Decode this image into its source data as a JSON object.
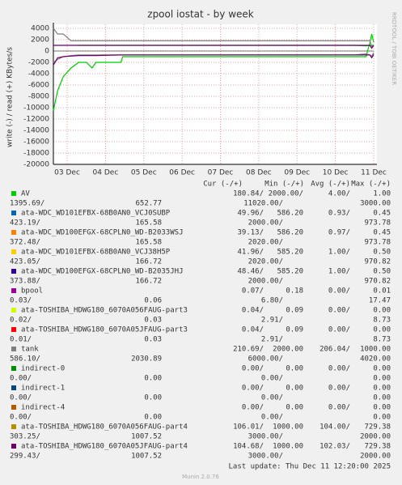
{
  "chart_data": {
    "type": "line",
    "title": "zpool iostat - by week",
    "ylabel": "write (-) / read (+) KBytes/s",
    "watermark": "RRDTOOL / TOBI OETIKER",
    "x": [
      2.64,
      2.75,
      2.9,
      3.1,
      3.3,
      3.5,
      3.65,
      3.75,
      4.4,
      4.45,
      10.5,
      10.8,
      10.9,
      10.95,
      11.0
    ],
    "xlim": [
      2.64,
      11.0
    ],
    "xticks": [
      {
        "value": 3,
        "label": "03 Dec"
      },
      {
        "value": 4,
        "label": "04 Dec"
      },
      {
        "value": 5,
        "label": "05 Dec"
      },
      {
        "value": 6,
        "label": "06 Dec"
      },
      {
        "value": 7,
        "label": "07 Dec"
      },
      {
        "value": 8,
        "label": "08 Dec"
      },
      {
        "value": 9,
        "label": "09 Dec"
      },
      {
        "value": 10,
        "label": "10 Dec"
      },
      {
        "value": 11,
        "label": "11 Dec"
      }
    ],
    "ylim": [
      -20000,
      4000
    ],
    "yticks": [
      4000,
      2000,
      0,
      -2000,
      -4000,
      -6000,
      -8000,
      -10000,
      -12000,
      -14000,
      -16000,
      -18000,
      -20000
    ],
    "grid": true,
    "legend_header": [
      "Cur (-/+)",
      "Min (-/+)",
      "Avg (-/+)",
      "Max (-/+)"
    ],
    "series": [
      {
        "name": "AV",
        "color": "#00cc00",
        "values": [
          null,
          null,
          null,
          null,
          1000,
          1000,
          1000,
          1000,
          1000,
          1000,
          1000,
          900,
          1000,
          1000,
          1000
        ],
        "write_values": [
          -10500,
          -7000,
          -4500,
          -3000,
          -2000,
          -2000,
          -3000,
          -2000,
          -2000,
          -1000,
          -1000,
          -1000,
          1500,
          3000,
          1500
        ],
        "stats": [
          [
            "180.84/",
            "2000.00/",
            "4.00/",
            "1.00"
          ],
          [
            "1395.69/",
            "652.77",
            "11020.00/",
            "3000.00"
          ]
        ]
      },
      {
        "name": "ata-WDC_WD101EFBX-68B0AN0_VCJ0SUBP",
        "color": "#0066b3",
        "stats": [
          [
            "49.96/",
            "586.20",
            "0.93/",
            "0.45"
          ],
          [
            "423.19/",
            "165.58",
            "2000.00/",
            "973.78"
          ]
        ]
      },
      {
        "name": "ata-WDC_WD100EFGX-68CPLN0_WD-B2033WSJ",
        "color": "#ff8000",
        "stats": [
          [
            "39.13/",
            "586.20",
            "0.97/",
            "0.45"
          ],
          [
            "372.48/",
            "165.58",
            "2020.00/",
            "973.78"
          ]
        ]
      },
      {
        "name": "ata-WDC_WD101EFBX-68B0AN0_VCJ38H5P",
        "color": "#ffcc00",
        "stats": [
          [
            "41.96/",
            "585.20",
            "1.00/",
            "0.50"
          ],
          [
            "423.05/",
            "166.72",
            "2020.00/",
            "970.82"
          ]
        ]
      },
      {
        "name": "ata-WDC_WD100EFGX-68CPLN0_WD-B2035JHJ",
        "color": "#330099",
        "stats": [
          [
            "48.46/",
            "585.20",
            "1.00/",
            "0.50"
          ],
          [
            "373.88/",
            "166.72",
            "2000.00/",
            "970.82"
          ]
        ]
      },
      {
        "name": "bpool",
        "color": "#990099",
        "stats": [
          [
            "0.07/",
            "0.18",
            "0.00/",
            "0.01"
          ],
          [
            "0.03/",
            "0.06",
            "6.80/",
            "17.47"
          ]
        ]
      },
      {
        "name": "ata-TOSHIBA_HDWG180_6070A056FAUG-part3",
        "color": "#ccff00",
        "stats": [
          [
            "0.04/",
            "0.09",
            "0.00/",
            "0.00"
          ],
          [
            "0.02/",
            "0.03",
            "2.91/",
            "8.73"
          ]
        ]
      },
      {
        "name": "ata-TOSHIBA_HDWG180_6070A05JFAUG-part3",
        "color": "#ff0000",
        "stats": [
          [
            "0.04/",
            "0.09",
            "0.00/",
            "0.00"
          ],
          [
            "0.01/",
            "0.03",
            "2.91/",
            "8.73"
          ]
        ]
      },
      {
        "name": "tank",
        "color": "#808080",
        "values": [
          4000,
          3000,
          3000,
          1800,
          1800,
          1800,
          1800,
          1800,
          1800,
          1800,
          1800,
          1800,
          1800,
          800,
          1000
        ],
        "write_values": [
          -2000,
          -1500,
          -1000,
          -800,
          -700,
          -700,
          -700,
          -700,
          -700,
          -700,
          -700,
          -500,
          -700,
          -900,
          -300
        ],
        "stats": [
          [
            "210.69/",
            "2000.00",
            "206.04/",
            "1000.00"
          ],
          [
            "586.10/",
            "2030.89",
            "6000.00/",
            "4020.00"
          ]
        ]
      },
      {
        "name": "indirect-0",
        "color": "#008f00",
        "stats": [
          [
            "0.00/",
            "0.00",
            "0.00/",
            "0.00"
          ],
          [
            "0.00/",
            "0.00",
            "0.00/",
            "0.00"
          ]
        ]
      },
      {
        "name": "indirect-1",
        "color": "#00487d",
        "stats": [
          [
            "0.00/",
            "0.00",
            "0.00/",
            "0.00"
          ],
          [
            "0.00/",
            "0.00",
            "0.00/",
            "0.00"
          ]
        ]
      },
      {
        "name": "indirect-4",
        "color": "#b35a00",
        "stats": [
          [
            "0.00/",
            "0.00",
            "0.00/",
            "0.00"
          ],
          [
            "0.00/",
            "0.00",
            "0.00/",
            "0.00"
          ]
        ]
      },
      {
        "name": "ata-TOSHIBA_HDWG180_6070A056FAUG-part4",
        "color": "#b38f00",
        "stats": [
          [
            "106.01/",
            "1000.00",
            "104.00/",
            "729.38"
          ],
          [
            "303.25/",
            "1007.52",
            "3000.00/",
            "2000.00"
          ]
        ]
      },
      {
        "name": "ata-TOSHIBA_HDWG180_6070A05JFAUG-part4",
        "color": "#6b006b",
        "values": [
          1000,
          1000,
          1000,
          1000,
          1000,
          1000,
          1000,
          1000,
          1000,
          1000,
          1000,
          1000,
          1000,
          500,
          1000
        ],
        "write_values": [
          -2500,
          -1200,
          -1000,
          -900,
          -800,
          -800,
          -800,
          -800,
          -700,
          -700,
          -700,
          -700,
          -700,
          -1200,
          -600
        ],
        "stats": [
          [
            "104.68/",
            "1000.00",
            "102.03/",
            "729.38"
          ],
          [
            "299.43/",
            "1007.52",
            "3000.00/",
            "2000.00"
          ]
        ]
      }
    ],
    "last_update": "Last update: Thu Dec 11 12:20:00 2025",
    "footer": "Munin 2.0.76"
  }
}
